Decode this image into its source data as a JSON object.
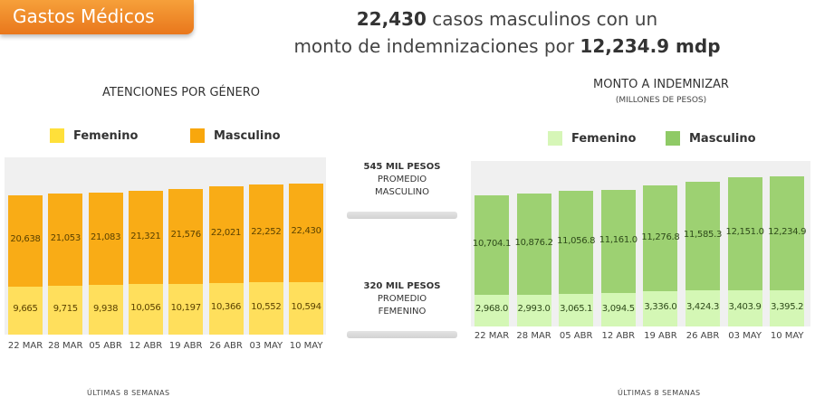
{
  "header": {
    "tag": "Gastos Médicos",
    "headline_line1_bold": "22,430",
    "headline_line1_rest": " casos masculinos con un",
    "headline_line2_rest": "monto de indemnizaciones por ",
    "headline_line2_bold": "12,234.9 mdp"
  },
  "middle": {
    "masculino": {
      "line1": "545 MIL PESOS",
      "line2": "PROMEDIO",
      "line3": "MASCULINO"
    },
    "femenino": {
      "line1": "320 MIL PESOS",
      "line2": "PROMEDIO",
      "line3": "FEMENINO"
    }
  },
  "colors": {
    "left_fem": "#ffdf5c",
    "left_masc": "#f9ac16",
    "left_fem_legend": "#ffe03a",
    "left_masc_legend": "#f8a70d",
    "right_fem": "#d4f7b5",
    "right_masc": "#9dd172",
    "right_fem_legend": "#d6f6b7",
    "right_masc_legend": "#8fca66"
  },
  "chart_data": [
    {
      "type": "bar",
      "stacked": true,
      "title": "ATENCIONES POR GÉNERO",
      "xlabel": "ÚLTIMAS 8 SEMANAS",
      "categories": [
        "22 MAR",
        "28 MAR",
        "05 ABR",
        "12 ABR",
        "19 ABR",
        "26 ABR",
        "03 MAY",
        "10 MAY"
      ],
      "series": [
        {
          "name": "Femenino",
          "values": [
            9665,
            9715,
            9938,
            10056,
            10197,
            10366,
            10552,
            10594
          ],
          "labels": [
            "9,665",
            "9,715",
            "9,938",
            "10,056",
            "10,197",
            "10,366",
            "10,552",
            "10,594"
          ]
        },
        {
          "name": "Masculino",
          "values": [
            20638,
            21053,
            21083,
            21321,
            21576,
            22021,
            22252,
            22430
          ],
          "labels": [
            "20,638",
            "21,053",
            "21,083",
            "21,321",
            "21,576",
            "22,021",
            "22,252",
            "22,430"
          ]
        }
      ]
    },
    {
      "type": "bar",
      "stacked": true,
      "title": "MONTO A INDEMNIZAR",
      "subtitle": "(MILLONES DE PESOS)",
      "xlabel": "ÚLTIMAS 8 SEMANAS",
      "categories": [
        "22 MAR",
        "28 MAR",
        "05 ABR",
        "12 ABR",
        "19 ABR",
        "26 ABR",
        "03 MAY",
        "10 MAY"
      ],
      "series": [
        {
          "name": "Femenino",
          "values": [
            2968.0,
            2993.0,
            3065.1,
            3094.5,
            3336.0,
            3424.3,
            3403.9,
            3395.2
          ],
          "labels": [
            "2,968.0",
            "2,993.0",
            "3,065.1",
            "3,094.5",
            "3,336.0",
            "3,424.3",
            "3,403.9",
            "3,395.2"
          ]
        },
        {
          "name": "Masculino",
          "values": [
            10704.1,
            10876.2,
            11056.8,
            11161.0,
            11276.8,
            11585.3,
            12151.0,
            12234.9
          ],
          "labels": [
            "10,704.1",
            "10,876.2",
            "11,056.8",
            "11,161.0",
            "11,276.8",
            "11,585.3",
            "12,151.0",
            "12,234.9"
          ]
        }
      ]
    }
  ]
}
